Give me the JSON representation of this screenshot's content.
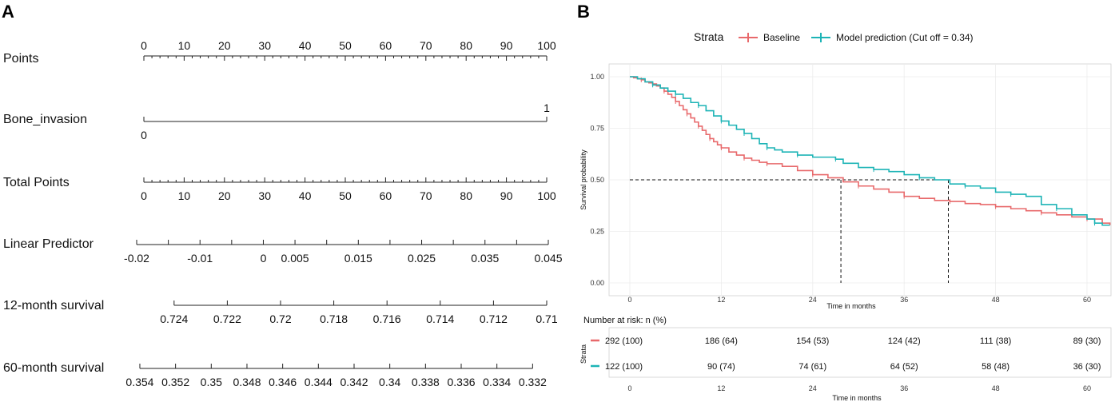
{
  "chart_data": [
    {
      "type": "nomogram",
      "panel_label": "A",
      "rows": [
        {
          "name": "Points",
          "kind": "points",
          "min": 0,
          "max": 100,
          "minor_step": 2,
          "labels": [
            "0",
            "10",
            "20",
            "30",
            "40",
            "50",
            "60",
            "70",
            "80",
            "90",
            "100"
          ],
          "label_pos": "above"
        },
        {
          "name": "Bone_invasion",
          "kind": "binary",
          "values": [
            0,
            1
          ],
          "labels": [
            "0",
            "1"
          ]
        },
        {
          "name": "Total Points",
          "kind": "points",
          "min": 0,
          "max": 100,
          "minor_step": 2,
          "labels": [
            "0",
            "10",
            "20",
            "30",
            "40",
            "50",
            "60",
            "70",
            "80",
            "90",
            "100"
          ],
          "label_pos": "below"
        },
        {
          "name": "Linear Predictor",
          "kind": "scale",
          "min": -0.02,
          "max": 0.045,
          "ticks": [
            -0.02,
            -0.015,
            -0.01,
            -0.005,
            0,
            0.005,
            0.01,
            0.015,
            0.02,
            0.025,
            0.03,
            0.035,
            0.04,
            0.045
          ],
          "labels": [
            "-0.02",
            "-0.01",
            "0",
            "0.005",
            "0.015",
            "0.025",
            "0.035",
            "0.045"
          ],
          "label_values": [
            -0.02,
            -0.01,
            0,
            0.005,
            0.015,
            0.025,
            0.035,
            0.045
          ]
        },
        {
          "name": "12-month survival",
          "kind": "scale",
          "min_points": 7.5,
          "max_points": 100,
          "values": [
            0.724,
            0.722,
            0.72,
            0.718,
            0.716,
            0.714,
            0.712,
            0.71
          ],
          "labels": [
            "0.724",
            "0.722",
            "0.72",
            "0.718",
            "0.716",
            "0.714",
            "0.712",
            "0.71"
          ]
        },
        {
          "name": "60-month survival",
          "kind": "scale",
          "min_points": -1,
          "max_points": 96.5,
          "values": [
            0.354,
            0.352,
            0.35,
            0.348,
            0.346,
            0.344,
            0.342,
            0.34,
            0.338,
            0.336,
            0.334,
            0.332
          ],
          "labels": [
            "0.354",
            "0.352",
            "0.35",
            "0.348",
            "0.346",
            "0.344",
            "0.342",
            "0.34",
            "0.338",
            "0.336",
            "0.334",
            "0.332"
          ]
        }
      ]
    },
    {
      "type": "line",
      "subtype": "kaplan-meier",
      "panel_label": "B",
      "legend": {
        "title": "Strata",
        "entries": [
          "Baseline",
          "Model prediction (Cut off = 0.34)"
        ],
        "position": "top"
      },
      "xlabel": "Time in months",
      "ylabel": "Survival probability",
      "xlim": [
        0,
        63
      ],
      "ylim": [
        0,
        1
      ],
      "xticks": [
        0,
        12,
        24,
        36,
        48,
        60
      ],
      "xtick_labels": [
        "0",
        "12",
        "24",
        "36",
        "48",
        "60"
      ],
      "yticks": [
        0,
        0.25,
        0.5,
        0.75,
        1.0
      ],
      "ytick_labels": [
        "0.00",
        "0.25",
        "0.50",
        "0.75",
        "1.00"
      ],
      "median_line": {
        "y": 0.5,
        "x_baseline": 27.7,
        "x_model": 41.8
      },
      "series": [
        {
          "name": "Baseline",
          "color": "#e8696b",
          "x": [
            0,
            0.5,
            1,
            1.5,
            2,
            2.5,
            3,
            3.5,
            4,
            4.5,
            5,
            5.5,
            6,
            6.5,
            7,
            7.5,
            8,
            8.5,
            9,
            9.5,
            10,
            10.5,
            11,
            11.5,
            12,
            13,
            14,
            15,
            16,
            17,
            18,
            20,
            22,
            24,
            26,
            28,
            30,
            32,
            34,
            36,
            38,
            40,
            42,
            44,
            46,
            48,
            50,
            52,
            54,
            56,
            58,
            60,
            62,
            63
          ],
          "y": [
            1.0,
            0.995,
            0.99,
            0.985,
            0.975,
            0.97,
            0.965,
            0.955,
            0.945,
            0.93,
            0.915,
            0.9,
            0.88,
            0.86,
            0.84,
            0.82,
            0.8,
            0.78,
            0.76,
            0.74,
            0.72,
            0.7,
            0.685,
            0.67,
            0.655,
            0.635,
            0.62,
            0.605,
            0.595,
            0.585,
            0.578,
            0.565,
            0.545,
            0.525,
            0.51,
            0.49,
            0.47,
            0.455,
            0.44,
            0.42,
            0.41,
            0.4,
            0.395,
            0.385,
            0.38,
            0.37,
            0.36,
            0.35,
            0.34,
            0.33,
            0.32,
            0.31,
            0.29,
            0.28
          ]
        },
        {
          "name": "Model prediction (Cut off = 0.34)",
          "color": "#1db4b6",
          "x": [
            0,
            1,
            2,
            3,
            4,
            5,
            6,
            7,
            8,
            9,
            10,
            11,
            12,
            13,
            14,
            15,
            16,
            17,
            18,
            19,
            20,
            22,
            24,
            26,
            27,
            28,
            30,
            32,
            34,
            36,
            38,
            40,
            42,
            44,
            46,
            48,
            50,
            52,
            54,
            56,
            58,
            60,
            61,
            62,
            63
          ],
          "y": [
            1.0,
            0.99,
            0.975,
            0.96,
            0.945,
            0.93,
            0.915,
            0.895,
            0.875,
            0.86,
            0.835,
            0.81,
            0.785,
            0.765,
            0.745,
            0.725,
            0.7,
            0.675,
            0.655,
            0.645,
            0.635,
            0.62,
            0.61,
            0.61,
            0.6,
            0.58,
            0.56,
            0.55,
            0.54,
            0.525,
            0.51,
            0.5,
            0.48,
            0.47,
            0.46,
            0.44,
            0.43,
            0.42,
            0.38,
            0.36,
            0.33,
            0.31,
            0.29,
            0.28,
            0.28
          ]
        }
      ],
      "risk_table": {
        "title": "Number at risk: n (%)",
        "ylabel": "Strata",
        "xlabel": "Time in months",
        "rows": [
          {
            "name": "Baseline",
            "color": "#e8696b",
            "values": [
              "292 (100)",
              "186 (64)",
              "154 (53)",
              "124 (42)",
              "111 (38)",
              "89 (30)"
            ]
          },
          {
            "name": "Model prediction (Cut off = 0.34)",
            "color": "#1db4b6",
            "values": [
              "122 (100)",
              "90 (74)",
              "74 (61)",
              "64 (52)",
              "58 (48)",
              "36 (30)"
            ]
          }
        ]
      }
    }
  ]
}
